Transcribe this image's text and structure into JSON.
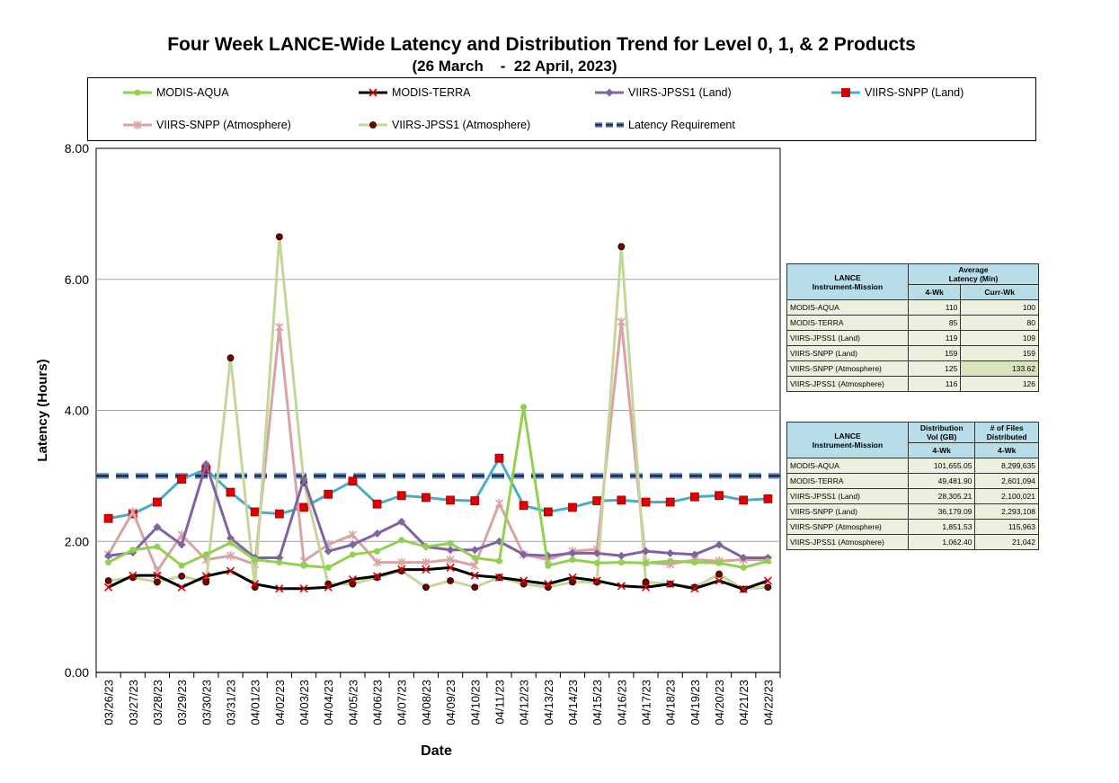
{
  "title": "Four Week LANCE-Wide Latency and Distribution Trend for Level 0, 1, & 2 Products",
  "subtitle": "(26 March    -  22 April, 2023)",
  "colors": {
    "modis_aqua": "#92d050",
    "modis_terra": "#000000",
    "viirs_jpss1_land": "#8064a2",
    "viirs_snpp_land": "#4bacc6",
    "viirs_snpp_atm": "#d9a3a3",
    "viirs_jpss1_atm": "#c4d79b",
    "requirement": "#1f3864",
    "marker_red": "#ff0000",
    "grid": "#a0a0a0"
  },
  "chart_data": {
    "type": "line",
    "xlabel": "Date",
    "ylabel": "Latency (Hours)",
    "ylim": [
      0,
      8
    ],
    "yticks": [
      "0.00",
      "2.00",
      "4.00",
      "6.00",
      "8.00"
    ],
    "grid": "horizontal",
    "legend_position": "top",
    "categories": [
      "03/26/23",
      "03/27/23",
      "03/28/23",
      "03/29/23",
      "03/30/23",
      "03/31/23",
      "04/01/23",
      "04/02/23",
      "04/03/23",
      "04/04/23",
      "04/05/23",
      "04/06/23",
      "04/07/23",
      "04/08/23",
      "04/09/23",
      "04/10/23",
      "04/11/23",
      "04/12/23",
      "04/13/23",
      "04/14/23",
      "04/15/23",
      "04/16/23",
      "04/17/23",
      "04/18/23",
      "04/19/23",
      "04/20/23",
      "04/21/23",
      "04/22/23"
    ],
    "series": [
      {
        "name": "MODIS-AQUA",
        "key": "modis_aqua",
        "marker": "circle",
        "values": [
          1.68,
          1.87,
          1.92,
          1.63,
          1.8,
          1.98,
          1.72,
          1.68,
          1.63,
          1.6,
          1.8,
          1.85,
          2.02,
          1.92,
          1.97,
          1.75,
          1.7,
          4.05,
          1.63,
          1.72,
          1.67,
          1.68,
          1.67,
          1.7,
          1.68,
          1.67,
          1.6,
          1.7
        ]
      },
      {
        "name": "MODIS-TERRA",
        "key": "modis_terra",
        "marker": "x",
        "values": [
          1.3,
          1.48,
          1.48,
          1.3,
          1.47,
          1.55,
          1.35,
          1.28,
          1.28,
          1.3,
          1.42,
          1.47,
          1.57,
          1.57,
          1.6,
          1.48,
          1.45,
          1.4,
          1.35,
          1.45,
          1.4,
          1.32,
          1.3,
          1.35,
          1.28,
          1.4,
          1.27,
          1.4
        ]
      },
      {
        "name": "VIIRS-JPSS1 (Land)",
        "key": "viirs_jpss1_land",
        "marker": "diamond",
        "values": [
          1.78,
          1.83,
          2.22,
          1.95,
          3.18,
          2.05,
          1.75,
          1.75,
          2.95,
          1.85,
          1.95,
          2.12,
          2.3,
          1.92,
          1.87,
          1.87,
          2.0,
          1.8,
          1.78,
          1.82,
          1.82,
          1.78,
          1.85,
          1.82,
          1.8,
          1.95,
          1.75,
          1.75
        ]
      },
      {
        "name": "VIIRS-SNPP (Land)",
        "key": "viirs_snpp_land",
        "marker": "square",
        "values": [
          2.35,
          2.42,
          2.6,
          2.95,
          3.1,
          2.75,
          2.45,
          2.42,
          2.52,
          2.72,
          2.92,
          2.57,
          2.7,
          2.67,
          2.63,
          2.62,
          3.27,
          2.55,
          2.45,
          2.52,
          2.62,
          2.63,
          2.6,
          2.6,
          2.68,
          2.7,
          2.63,
          2.65
        ]
      },
      {
        "name": "VIIRS-SNPP (Atmosphere)",
        "key": "viirs_snpp_atm",
        "marker": "star",
        "values": [
          1.8,
          2.45,
          1.55,
          2.1,
          1.72,
          1.78,
          1.65,
          5.27,
          1.7,
          1.95,
          2.1,
          1.68,
          1.68,
          1.68,
          1.72,
          1.63,
          2.58,
          1.8,
          1.72,
          1.85,
          1.88,
          5.35,
          1.68,
          1.65,
          1.72,
          1.7,
          1.72,
          1.72
        ]
      },
      {
        "name": "VIIRS-JPSS1 (Atmosphere)",
        "key": "viirs_jpss1_atm",
        "marker": "dot",
        "values": [
          1.4,
          1.45,
          1.38,
          1.47,
          1.38,
          4.8,
          1.3,
          6.65,
          2.9,
          1.35,
          1.35,
          1.45,
          1.55,
          1.3,
          1.4,
          1.3,
          1.45,
          1.35,
          1.3,
          1.38,
          1.38,
          6.5,
          1.38,
          1.35,
          1.3,
          1.5,
          1.27,
          1.3
        ]
      },
      {
        "name": "Latency Requirement",
        "key": "requirement",
        "marker": "dash",
        "values": [
          3,
          3,
          3,
          3,
          3,
          3,
          3,
          3,
          3,
          3,
          3,
          3,
          3,
          3,
          3,
          3,
          3,
          3,
          3,
          3,
          3,
          3,
          3,
          3,
          3,
          3,
          3,
          3
        ]
      }
    ]
  },
  "table1": {
    "header_col1": [
      "LANCE",
      "Instrument-Mission"
    ],
    "header_col2": [
      "Average",
      "Latency (Min)"
    ],
    "sub_headers": [
      "4-Wk",
      "Curr-Wk"
    ],
    "rows": [
      {
        "name": "MODIS-AQUA",
        "wk4": "110",
        "curr": "100"
      },
      {
        "name": "MODIS-TERRA",
        "wk4": "85",
        "curr": "80"
      },
      {
        "name": "VIIRS-JPSS1 (Land)",
        "wk4": "119",
        "curr": "109"
      },
      {
        "name": "VIIRS-SNPP (Land)",
        "wk4": "159",
        "curr": "159"
      },
      {
        "name": "VIIRS-SNPP (Atmosphere)",
        "wk4": "125",
        "curr": "133.62"
      },
      {
        "name": "VIIRS-JPSS1 (Atmosphere)",
        "wk4": "116",
        "curr": "126"
      }
    ]
  },
  "table2": {
    "header_col1": [
      "LANCE",
      "Instrument-Mission"
    ],
    "header_col2": [
      "Distribution",
      "Vol (GB)"
    ],
    "header_col3": [
      "# of Files",
      "Distributed"
    ],
    "sub_headers": [
      "4-Wk",
      "4-Wk"
    ],
    "rows": [
      {
        "name": "MODIS-AQUA",
        "vol": "101,655.05",
        "files": "8,299,635"
      },
      {
        "name": "MODIS-TERRA",
        "vol": "49,481.90",
        "files": "2,601,094"
      },
      {
        "name": "VIIRS-JPSS1 (Land)",
        "vol": "28,305.21",
        "files": "2,100,021"
      },
      {
        "name": "VIIRS-SNPP (Land)",
        "vol": "36,179.09",
        "files": "2,293,108"
      },
      {
        "name": "VIIRS-SNPP (Atmosphere)",
        "vol": "1,851.53",
        "files": "115,963"
      },
      {
        "name": "VIIRS-JPSS1 (Atmosphere)",
        "vol": "1,062.40",
        "files": "21,042"
      }
    ]
  }
}
